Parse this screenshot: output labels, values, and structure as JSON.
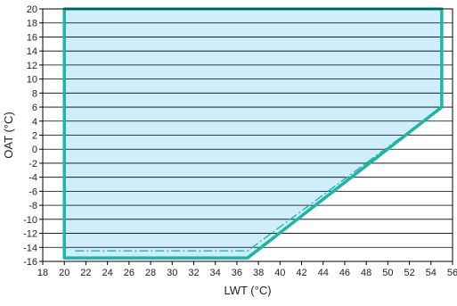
{
  "chart_data": {
    "type": "area",
    "title": "",
    "xlabel": "LWT (°C)",
    "ylabel": "OAT (°C)",
    "xlim": [
      18,
      56
    ],
    "ylim": [
      -16,
      20
    ],
    "x_ticks": [
      18,
      20,
      22,
      24,
      26,
      28,
      30,
      32,
      34,
      36,
      38,
      40,
      42,
      44,
      46,
      48,
      50,
      52,
      54,
      56
    ],
    "y_ticks": [
      -16,
      -14,
      -12,
      -10,
      -8,
      -6,
      -4,
      -2,
      0,
      2,
      4,
      6,
      8,
      10,
      12,
      14,
      16,
      18,
      20
    ],
    "grid": "horizontal",
    "legend": "none",
    "series": [
      {
        "style": "solid",
        "color": "#1fb5a5",
        "fill": "#cdeefa",
        "x": [
          20,
          20,
          55,
          55,
          37,
          20
        ],
        "y": [
          -15.5,
          20,
          20,
          6,
          -15.5,
          -15.5
        ]
      },
      {
        "style": "dash-dot",
        "color": "#1fb5a5",
        "x": [
          21,
          37,
          55
        ],
        "y": [
          -14.5,
          -14.5,
          6
        ]
      }
    ]
  }
}
